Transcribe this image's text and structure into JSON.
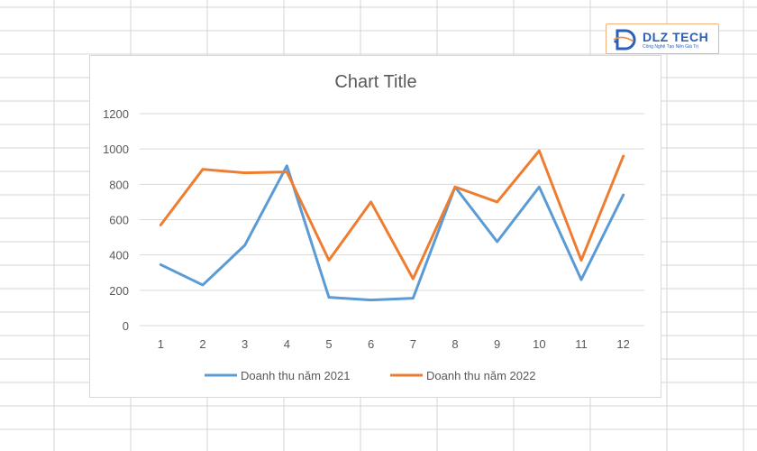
{
  "logo": {
    "text": "DLZ TECH",
    "subtext": "Công Nghệ Tạo Nên Giá Trị"
  },
  "colors": {
    "series_2021": "#5b9bd5",
    "series_2022": "#ed7d31",
    "gridline": "#d9d9d9",
    "sheet_grid": "#d4d4d4",
    "logo_blue": "#2a5fb8"
  },
  "chart_data": {
    "type": "line",
    "title": "Chart Title",
    "xlabel": "",
    "ylabel": "",
    "categories": [
      "1",
      "2",
      "3",
      "4",
      "5",
      "6",
      "7",
      "8",
      "9",
      "10",
      "11",
      "12"
    ],
    "ylim": [
      0,
      1200
    ],
    "yticks": [
      "0",
      "200",
      "400",
      "600",
      "800",
      "1000",
      "1200"
    ],
    "grid": true,
    "legend_position": "bottom",
    "series": [
      {
        "name": "Doanh thu năm 2021",
        "values": [
          345,
          230,
          455,
          905,
          160,
          145,
          155,
          785,
          475,
          785,
          260,
          740
        ]
      },
      {
        "name": "Doanh thu năm 2022",
        "values": [
          570,
          885,
          865,
          870,
          370,
          700,
          265,
          785,
          700,
          990,
          370,
          960
        ]
      }
    ]
  }
}
